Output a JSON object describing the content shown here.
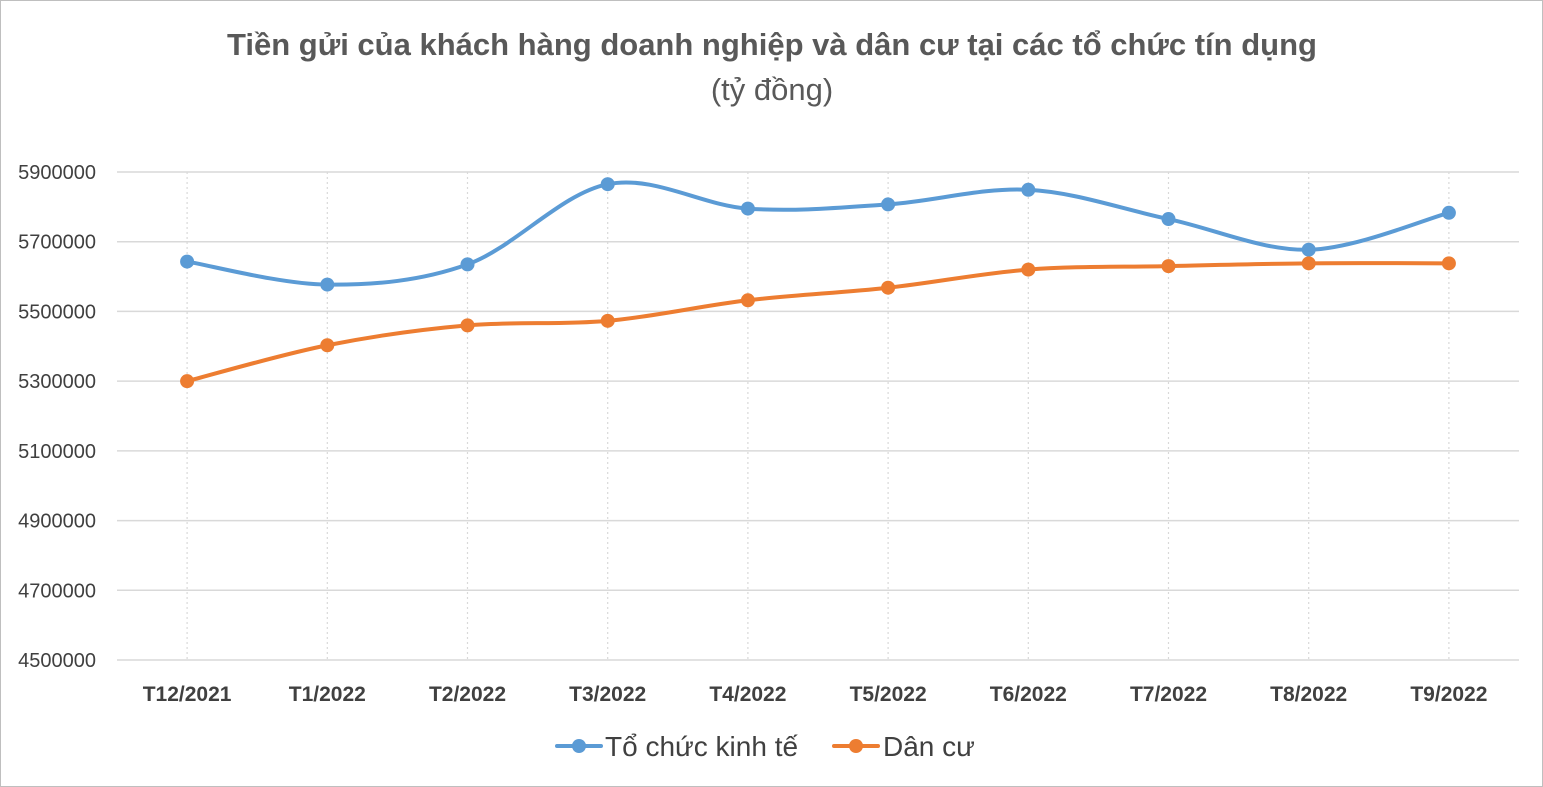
{
  "chart_data": {
    "type": "line",
    "title": "Tiền gửi của khách hàng doanh nghiệp và dân cư tại các tổ chức tín dụng",
    "subtitle": "(tỷ đồng)",
    "xlabel": "",
    "ylabel": "",
    "categories": [
      "T12/2021",
      "T1/2022",
      "T2/2022",
      "T3/2022",
      "T4/2022",
      "T5/2022",
      "T6/2022",
      "T7/2022",
      "T8/2022",
      "T9/2022"
    ],
    "ylim": [
      4500000,
      5900000
    ],
    "yticks": [
      4500000,
      4700000,
      4900000,
      5100000,
      5300000,
      5500000,
      5700000,
      5900000
    ],
    "ytick_labels": [
      "4500000",
      "4700000",
      "4900000",
      "5100000",
      "5300000",
      "5500000",
      "5700000",
      "5900000"
    ],
    "grid": true,
    "smooth": true,
    "legend_position": "bottom",
    "series": [
      {
        "name": "Tổ chức kinh tế",
        "color": "#5b9bd5",
        "values": [
          5643000,
          5577000,
          5635000,
          5865000,
          5795000,
          5807000,
          5849000,
          5765000,
          5677000,
          5783000
        ]
      },
      {
        "name": "Dân cư",
        "color": "#ed7d31",
        "values": [
          5300000,
          5403000,
          5460000,
          5473000,
          5532000,
          5568000,
          5620000,
          5630000,
          5638000,
          5638000
        ]
      }
    ]
  }
}
